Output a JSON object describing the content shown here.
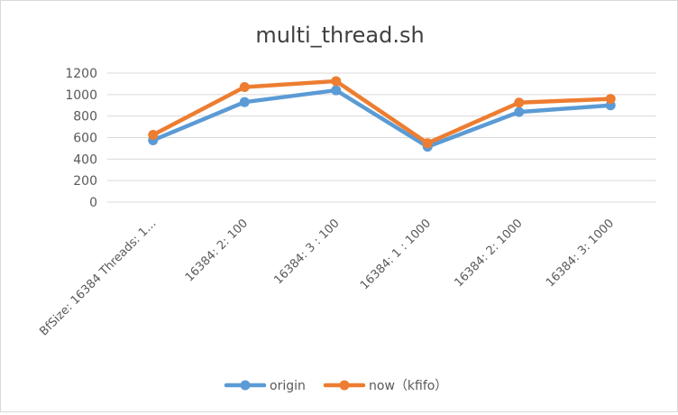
{
  "chart_data": {
    "type": "line",
    "title": "multi_thread.sh",
    "categories": [
      "BfSize: 16384 Threads: 1…",
      "16384:  2:  100",
      "16384:  3 :  100",
      "16384:  1 :  1000",
      "16384:  2:  1000",
      "16384:  3:  1000"
    ],
    "series": [
      {
        "name": "origin",
        "values": [
          575,
          930,
          1040,
          515,
          838,
          900
        ],
        "color": "#5B9BD5"
      },
      {
        "name": "now（kfifo）",
        "values": [
          625,
          1070,
          1125,
          548,
          925,
          960
        ],
        "color": "#ED7D31"
      }
    ],
    "yticks": [
      0,
      200,
      400,
      600,
      800,
      1000,
      1200
    ],
    "ylim": [
      0,
      1200
    ],
    "grid": true,
    "legend": "bottom"
  }
}
